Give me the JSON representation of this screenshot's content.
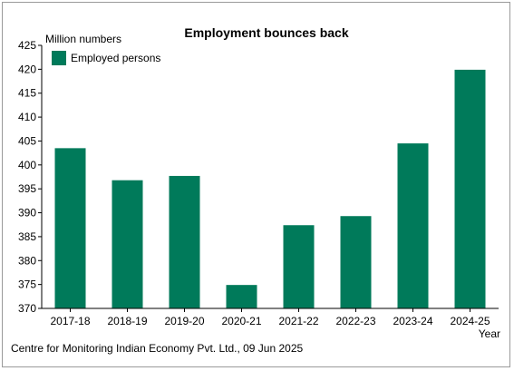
{
  "chart_data": {
    "type": "bar",
    "title": "Employment bounces back",
    "ylabel": "Million numbers",
    "xlabel": "Year",
    "categories": [
      "2017-18",
      "2018-19",
      "2019-20",
      "2020-21",
      "2021-22",
      "2022-23",
      "2023-24",
      "2024-25"
    ],
    "series": [
      {
        "name": "Employed persons",
        "values": [
          403.5,
          396.8,
          397.7,
          374.9,
          387.4,
          389.3,
          404.5,
          419.9
        ],
        "color": "#007a5a"
      }
    ],
    "ylim": [
      370,
      425
    ],
    "yticks": [
      370,
      375,
      380,
      385,
      390,
      395,
      400,
      405,
      410,
      415,
      420,
      425
    ],
    "legend_position": "top-left",
    "grid": false
  },
  "source": "Centre for Monitoring Indian Economy Pvt. Ltd., 09 Jun 2025"
}
